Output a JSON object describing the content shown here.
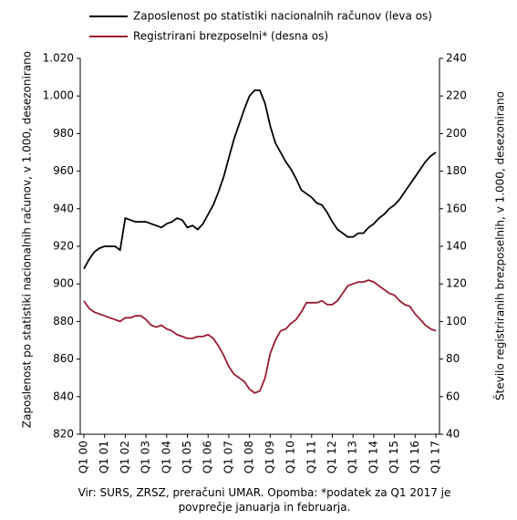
{
  "chart_data": {
    "type": "line",
    "categories": [
      "Q1 00",
      null,
      null,
      null,
      "Q1 01",
      null,
      null,
      null,
      "Q1 02",
      null,
      null,
      null,
      "Q1 03",
      null,
      null,
      null,
      "Q1 04",
      null,
      null,
      null,
      "Q1 05",
      null,
      null,
      null,
      "Q1 06",
      null,
      null,
      null,
      "Q1 07",
      null,
      null,
      null,
      "Q1 08",
      null,
      null,
      null,
      "Q1 09",
      null,
      null,
      null,
      "Q1 10",
      null,
      null,
      null,
      "Q1 11",
      null,
      null,
      null,
      "Q1 12",
      null,
      null,
      null,
      "Q1 13",
      null,
      null,
      null,
      "Q1 14",
      null,
      null,
      null,
      "Q1 15",
      null,
      null,
      null,
      "Q1 16",
      null,
      null,
      null,
      "Q1 17"
    ],
    "series": [
      {
        "name": "Zaposlenost po statistiki nacionalnih računov (leva os)",
        "color": "#000000",
        "values": [
          908,
          913,
          917,
          919,
          920,
          920,
          920,
          918,
          935,
          934,
          933,
          933,
          933,
          932,
          931,
          930,
          932,
          933,
          935,
          934,
          930,
          931,
          929,
          932,
          937,
          942,
          949,
          957,
          967,
          977,
          985,
          993,
          1000,
          1003,
          1003,
          996,
          984,
          975,
          970,
          965,
          961,
          956,
          950,
          948,
          946,
          943,
          942,
          938,
          933,
          929,
          927,
          925,
          925,
          927,
          927,
          930,
          932,
          935,
          937,
          940,
          942,
          945,
          949,
          953,
          957,
          961,
          965,
          968,
          970
        ]
      },
      {
        "name": "Registrirani brezposelni* (desna os)",
        "color": "#9b1b30",
        "axis": "y2",
        "values": [
          111,
          107,
          105,
          104,
          103,
          102,
          101,
          100,
          102,
          102,
          103,
          103,
          101,
          98,
          97,
          98,
          96,
          95,
          93,
          92,
          91,
          91,
          92,
          92,
          93,
          91,
          87,
          82,
          76,
          72,
          70,
          68,
          64,
          62,
          63,
          70,
          83,
          90,
          95,
          96,
          99,
          101,
          105,
          110,
          110,
          110,
          111,
          109,
          109,
          111,
          115,
          119,
          120,
          121,
          121,
          122,
          121,
          119,
          117,
          115,
          114,
          111,
          109,
          108,
          104,
          101,
          98,
          96,
          95
        ]
      }
    ],
    "ylabel": "Zaposlenost po statistiki nacionalnih računov,   v 1.000, desezonirano",
    "y2label": "Število registriranih brezposelnih, v 1.000, desezonirano",
    "ylim": [
      820,
      1020
    ],
    "yticks": [
      820,
      840,
      860,
      880,
      900,
      920,
      940,
      960,
      980,
      {
        "value": 1000,
        "label": "1.000"
      },
      {
        "value": 1020,
        "label": "1.020"
      }
    ],
    "y2lim": [
      40,
      240
    ],
    "y2ticks": [
      40,
      60,
      80,
      100,
      120,
      140,
      160,
      180,
      200,
      220,
      240
    ],
    "note": "Vir: SURS, ZRSZ, preračuni UMAR. Opomba: *podatek za Q1 2017 je povprečje januarja in februarja."
  }
}
